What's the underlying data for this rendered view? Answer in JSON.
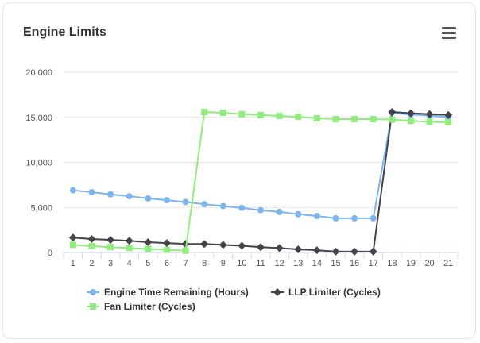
{
  "card": {
    "title": "Engine Limits",
    "menu_icon": "hamburger-menu-icon"
  },
  "chart_data": {
    "type": "line",
    "title": "Engine Limits",
    "x": [
      1,
      2,
      3,
      4,
      5,
      6,
      7,
      8,
      9,
      10,
      11,
      12,
      13,
      14,
      15,
      16,
      17,
      18,
      19,
      20,
      21
    ],
    "ylim": [
      0,
      20000
    ],
    "yticks": [
      0,
      5000,
      10000,
      15000,
      20000
    ],
    "ytick_labels": [
      "0",
      "5,000",
      "10,000",
      "15,000",
      "20,000"
    ],
    "grid": true,
    "legend": "bottom",
    "series": [
      {
        "name": "Engine Time Remaining (Hours)",
        "color": "#7cb5ec",
        "marker": "circle",
        "values": [
          6900,
          6700,
          6450,
          6250,
          6000,
          5800,
          5600,
          5350,
          5150,
          4950,
          4700,
          4500,
          4250,
          4050,
          3800,
          3800,
          3800,
          15500,
          15300,
          15200,
          15000
        ]
      },
      {
        "name": "LLP Limiter (Cycles)",
        "color": "#434348",
        "marker": "diamond",
        "values": [
          1650,
          1500,
          1400,
          1300,
          1150,
          1050,
          950,
          950,
          850,
          750,
          600,
          500,
          350,
          250,
          100,
          100,
          100,
          15600,
          15450,
          15350,
          15250
        ]
      },
      {
        "name": "Fan Limiter (Cycles)",
        "color": "#90ed7d",
        "marker": "square",
        "values": [
          850,
          700,
          600,
          500,
          400,
          300,
          200,
          15600,
          15500,
          15350,
          15250,
          15150,
          15050,
          14900,
          14800,
          14800,
          14800,
          14750,
          14600,
          14500,
          14450
        ]
      }
    ]
  }
}
